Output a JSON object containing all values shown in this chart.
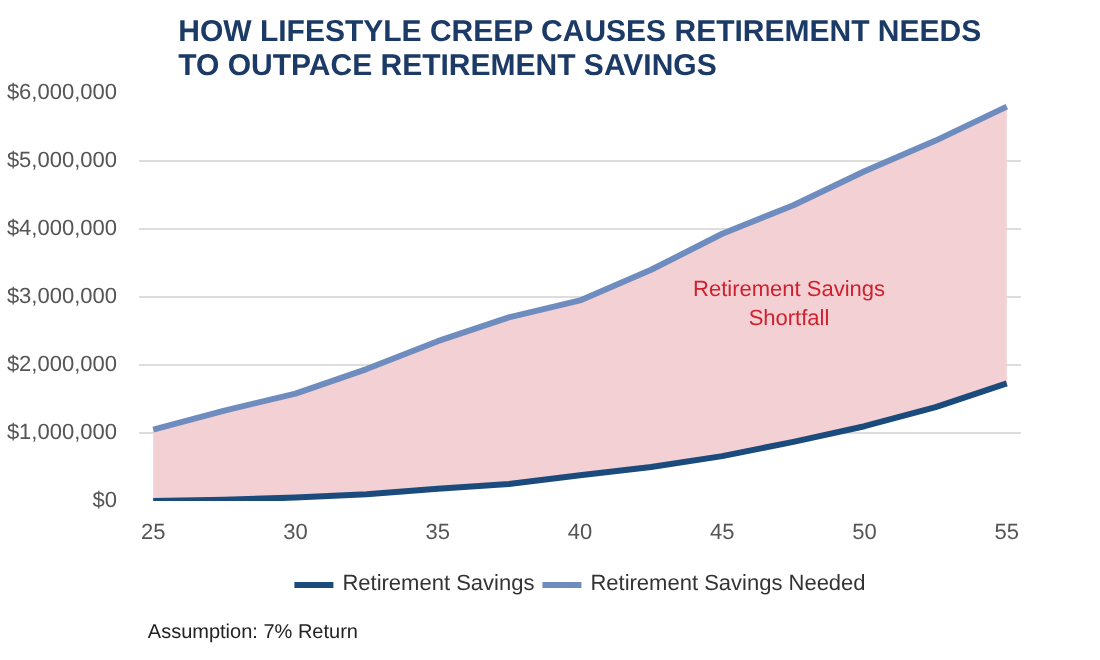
{
  "chart_data": {
    "type": "line",
    "title": "HOW LIFESTYLE CREEP CAUSES RETIREMENT NEEDS\nTO OUTPACE RETIREMENT SAVINGS",
    "x": [
      25,
      27.5,
      30,
      32.5,
      35,
      37.5,
      40,
      42.5,
      45,
      47.5,
      50,
      52.5,
      55
    ],
    "series": [
      {
        "name": "Retirement Savings",
        "color": "#1b4a7d",
        "values": [
          0,
          20000,
          50000,
          100000,
          180000,
          250000,
          380000,
          500000,
          660000,
          870000,
          1100000,
          1380000,
          1730000
        ]
      },
      {
        "name": "Retirement Savings Needed",
        "color": "#6f8cbf",
        "values": [
          1050000,
          1330000,
          1580000,
          1940000,
          2350000,
          2700000,
          2950000,
          3400000,
          3930000,
          4350000,
          4850000,
          5300000,
          5800000
        ],
        "lower": [
          0,
          20000,
          50000,
          100000,
          180000,
          250000,
          380000,
          500000,
          660000,
          870000,
          1100000,
          1380000,
          1730000
        ],
        "upper": [
          1050000,
          1330000,
          1580000,
          1940000,
          2350000,
          2700000,
          2950000,
          3400000,
          3930000,
          4350000,
          4850000,
          5300000,
          5800000
        ]
      }
    ],
    "xlim": [
      24.5,
      55.5
    ],
    "xticks": [
      25,
      30,
      35,
      40,
      45,
      50,
      55
    ],
    "ylim": [
      0,
      6000000
    ],
    "yticks": [
      {
        "value": 0,
        "label": "$0"
      },
      {
        "value": 1000000,
        "label": "$1,000,000"
      },
      {
        "value": 2000000,
        "label": "$2,000,000"
      },
      {
        "value": 3000000,
        "label": "$3,000,000"
      },
      {
        "value": 4000000,
        "label": "$4,000,000"
      },
      {
        "value": 5000000,
        "label": "$5,000,000"
      },
      {
        "value": 6000000,
        "label": "$6,000,000"
      }
    ],
    "grid": "y",
    "legend": "bottom",
    "annotations": [
      "Retirement Savings\nShortfall",
      "Assumption: 7% Return"
    ]
  }
}
